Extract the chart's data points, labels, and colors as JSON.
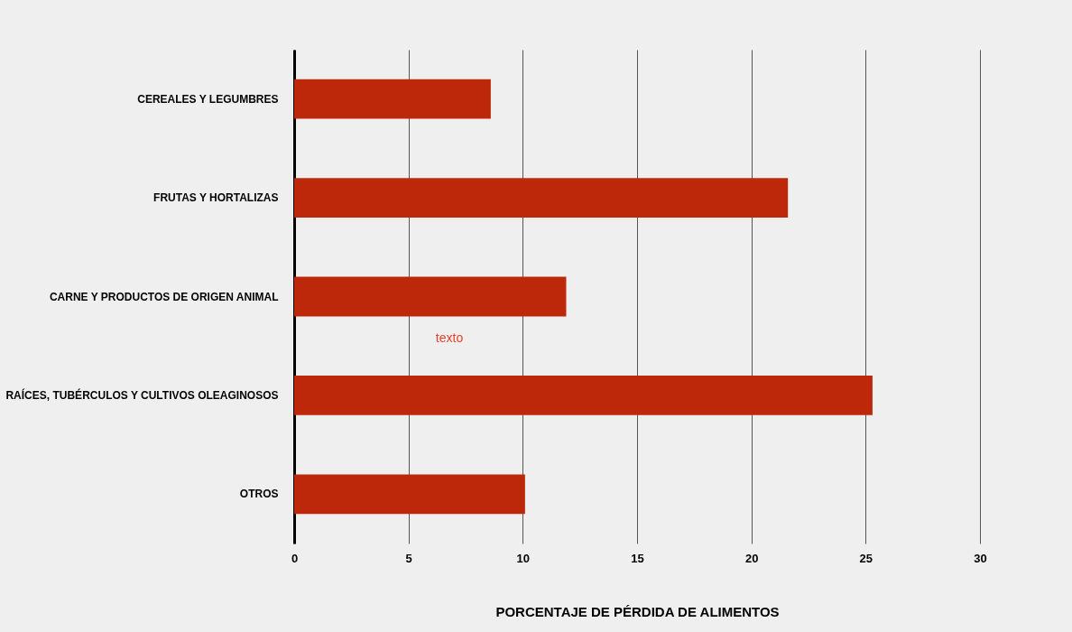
{
  "chart_data": {
    "type": "bar",
    "orientation": "horizontal",
    "xlabel": "PORCENTAJE DE PÉRDIDA DE ALIMENTOS",
    "categories": [
      "CEREALES Y LEGUMBRES",
      "FRUTAS Y HORTALIZAS",
      "CARNE Y PRODUCTOS DE ORIGEN ANIMAL",
      "RAÍCES, TUBÉRCULOS Y CULTIVOS OLEAGINOSOS",
      "OTROS"
    ],
    "values": [
      8.6,
      21.6,
      11.9,
      25.3,
      10.1
    ],
    "color": "#bd280a",
    "xlim": [
      0,
      30
    ],
    "xticks": [
      0,
      5,
      10,
      15,
      20,
      25,
      30
    ],
    "grid": "x",
    "annotations": [
      "texto"
    ]
  }
}
